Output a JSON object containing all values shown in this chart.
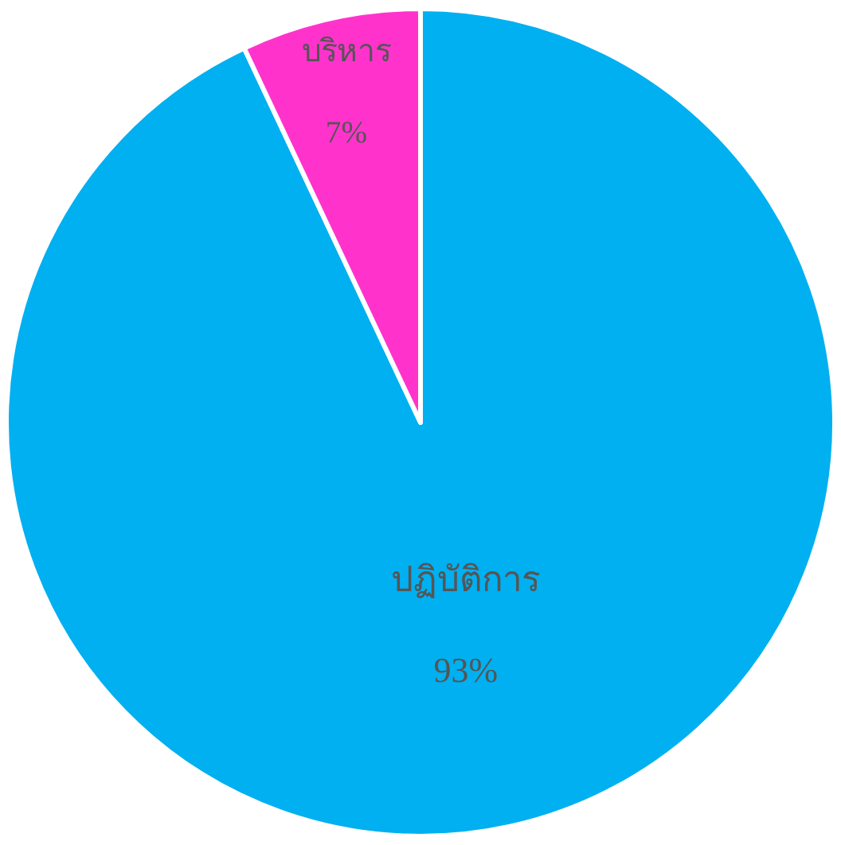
{
  "chart_data": {
    "type": "pie",
    "categories": [
      "ปฏิบัติการ",
      "บริหาร"
    ],
    "values": [
      93,
      7
    ],
    "value_labels": [
      "93%",
      "7%"
    ],
    "colors": [
      "#00b0f0",
      "#ff33cc"
    ],
    "legend": false
  }
}
